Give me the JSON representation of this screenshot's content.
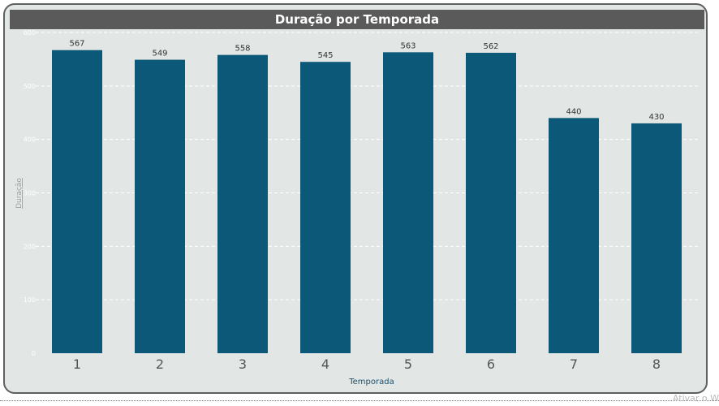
{
  "chart_data": {
    "type": "bar",
    "title": "Duração por Temporada",
    "xlabel": "Temporada",
    "ylabel": "Duração",
    "categories": [
      "1",
      "2",
      "3",
      "4",
      "5",
      "6",
      "7",
      "8"
    ],
    "values": [
      567,
      549,
      558,
      545,
      563,
      562,
      440,
      430
    ],
    "ylim": [
      0,
      600
    ],
    "yticks": [
      0,
      100,
      200,
      300,
      400,
      500,
      600
    ],
    "grid": true,
    "colors": {
      "bar": "#0b5878",
      "background": "#e2e7e5",
      "title_bg": "#5a5a5a",
      "grid": "#ffffff",
      "xlabel": "#1f4e6b",
      "ylabel": "#9aa3a3"
    }
  },
  "watermark": "Ativar o W"
}
